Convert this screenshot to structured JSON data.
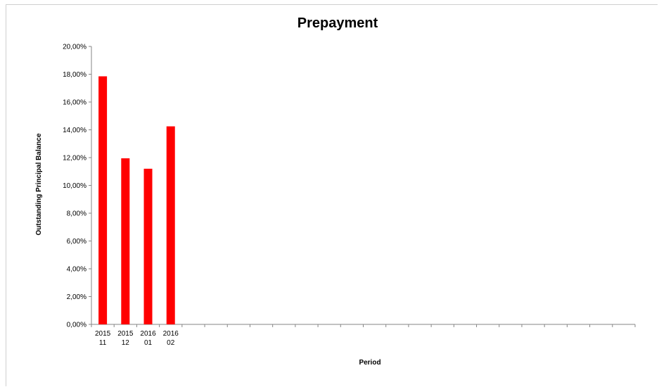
{
  "chart_data": {
    "type": "bar",
    "title": "Prepayment",
    "xlabel": "Period",
    "ylabel": "Outstanding Principal Balance",
    "categories": [
      [
        "2015",
        "11"
      ],
      [
        "2015",
        "12"
      ],
      [
        "2016",
        "01"
      ],
      [
        "2016",
        "02"
      ]
    ],
    "values": [
      17.85,
      11.95,
      11.2,
      14.25
    ],
    "empty_slots": 20,
    "ylim": [
      0,
      20
    ],
    "y_ticks": [
      "0,00%",
      "2,00%",
      "4,00%",
      "6,00%",
      "8,00%",
      "10,00%",
      "12,00%",
      "14,00%",
      "16,00%",
      "18,00%",
      "20,00%"
    ],
    "grid": false,
    "legend": "none",
    "bar_color": "#ff0000"
  }
}
